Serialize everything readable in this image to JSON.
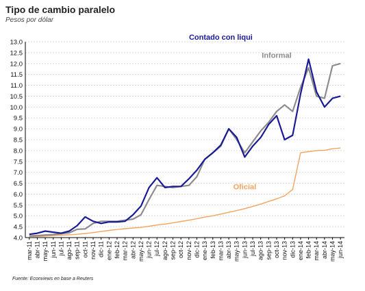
{
  "title": "Tipo de cambio paralelo",
  "subtitle": "Pesos por dólar",
  "source": "Fuente: Econviews en base a Reuters",
  "chart_data": {
    "type": "line",
    "ylim": [
      4.0,
      13.0
    ],
    "yticks": [
      "4.0",
      "4.5",
      "5.0",
      "5.5",
      "6.0",
      "6.5",
      "7.0",
      "7.5",
      "8.0",
      "8.5",
      "9.0",
      "9.5",
      "10.0",
      "10.5",
      "11.0",
      "11.5",
      "12.0",
      "12.5",
      "13.0"
    ],
    "x_labels": [
      "mar-11",
      "abr-11",
      "may-11",
      "jun-11",
      "jul-11",
      "ago-11",
      "sep-11",
      "oct-11",
      "nov-11",
      "dic-11",
      "ene-12",
      "feb-12",
      "mar-12",
      "abr-12",
      "may-12",
      "jun-12",
      "jul-12",
      "ago-12",
      "sep-12",
      "oct-12",
      "nov-12",
      "dic-12",
      "ene-13",
      "feb-13",
      "mar-13",
      "abr-13",
      "may-13",
      "jun-13",
      "jul-13",
      "ago-13",
      "sep-13",
      "oct-13",
      "nov-13",
      "dic-13",
      "ene-14",
      "feb-14",
      "mar-14",
      "abr-14",
      "may-14",
      "jun-14"
    ],
    "grid": true,
    "series": [
      {
        "name": "Informal",
        "color": "#8c8c8c",
        "label_color": "#8c8c8c",
        "values": [
          4.08,
          4.09,
          4.12,
          4.14,
          4.18,
          4.22,
          4.38,
          4.4,
          4.65,
          4.75,
          4.75,
          4.75,
          4.8,
          4.85,
          5.05,
          5.75,
          6.4,
          6.35,
          6.3,
          6.35,
          6.4,
          6.8,
          7.6,
          7.9,
          8.2,
          9.0,
          8.5,
          7.9,
          8.4,
          8.9,
          9.3,
          9.8,
          10.1,
          9.8,
          10.9,
          11.8,
          10.5,
          10.4,
          11.9,
          12.0
        ]
      },
      {
        "name": "Contado con liqui",
        "color": "#1a1a96",
        "label_color": "#1a1a96",
        "values": [
          4.15,
          4.2,
          4.3,
          4.25,
          4.2,
          4.3,
          4.55,
          4.95,
          4.75,
          4.65,
          4.72,
          4.72,
          4.75,
          5.05,
          5.45,
          6.3,
          6.75,
          6.3,
          6.35,
          6.35,
          6.7,
          7.1,
          7.6,
          7.9,
          8.25,
          9.0,
          8.6,
          7.7,
          8.2,
          8.6,
          9.2,
          9.6,
          8.5,
          8.7,
          10.6,
          12.2,
          10.7,
          10.0,
          10.4,
          10.5
        ]
      },
      {
        "name": "Oficial",
        "color": "#f4a460",
        "label_color": "#f4a460",
        "values": [
          4.05,
          4.05,
          4.07,
          4.09,
          4.11,
          4.13,
          4.15,
          4.19,
          4.23,
          4.28,
          4.33,
          4.37,
          4.41,
          4.44,
          4.47,
          4.52,
          4.58,
          4.62,
          4.68,
          4.74,
          4.8,
          4.87,
          4.94,
          5.0,
          5.08,
          5.16,
          5.24,
          5.33,
          5.43,
          5.54,
          5.66,
          5.78,
          5.92,
          6.21,
          7.9,
          7.95,
          8.0,
          8.01,
          8.08,
          8.12
        ]
      }
    ]
  }
}
